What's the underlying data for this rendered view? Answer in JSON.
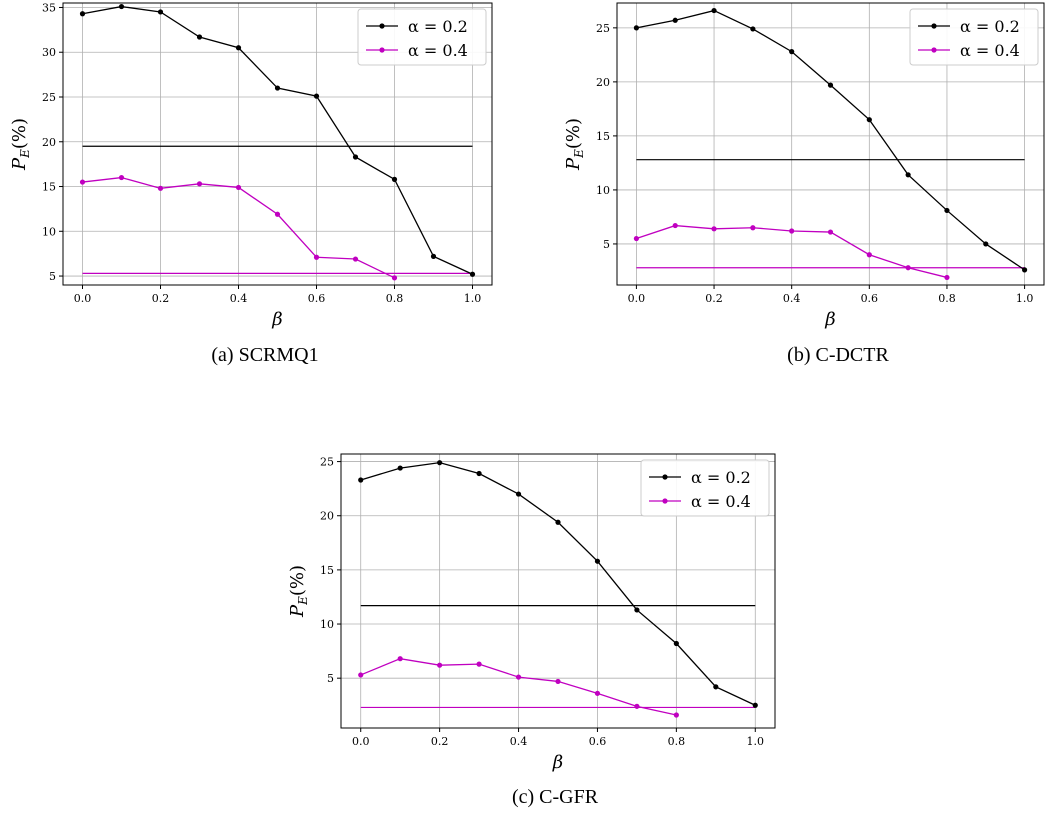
{
  "colors": {
    "series_a": "#000000",
    "series_b": "#c000c0",
    "grid": "#b0b0b0"
  },
  "chart_data": [
    {
      "type": "line",
      "caption": "(a) SCRMQ1",
      "xlabel": "β",
      "ylabel_main": "P",
      "ylabel_sub": "E",
      "ylabel_tail": "(%)",
      "xlim": [
        -0.05,
        1.05
      ],
      "ylim": [
        4.0,
        35.5
      ],
      "xticks": [
        0.0,
        0.2,
        0.4,
        0.6,
        0.8,
        1.0
      ],
      "xtick_labels": [
        "0.0",
        "0.2",
        "0.4",
        "0.6",
        "0.8",
        "1.0"
      ],
      "yticks": [
        5,
        10,
        15,
        20,
        25,
        30,
        35
      ],
      "ytick_labels": [
        "5",
        "10",
        "15",
        "20",
        "25",
        "30",
        "35"
      ],
      "grid": true,
      "legend_position": "top-right",
      "series": [
        {
          "name": "α = 0.2",
          "color": "#000000",
          "x": [
            0.0,
            0.1,
            0.2,
            0.3,
            0.4,
            0.5,
            0.6,
            0.7,
            0.8,
            0.9,
            1.0
          ],
          "values": [
            34.3,
            35.1,
            34.5,
            31.7,
            30.5,
            26.0,
            25.1,
            18.3,
            15.8,
            7.2,
            5.2
          ]
        },
        {
          "name": "α = 0.4",
          "color": "#c000c0",
          "x": [
            0.0,
            0.1,
            0.2,
            0.3,
            0.4,
            0.5,
            0.6,
            0.7,
            0.8
          ],
          "values": [
            15.5,
            16.0,
            14.8,
            15.3,
            14.9,
            11.9,
            7.1,
            6.9,
            4.8
          ]
        }
      ],
      "hlines": [
        {
          "y": 19.5,
          "color": "#000000"
        },
        {
          "y": 5.3,
          "color": "#c000c0"
        }
      ]
    },
    {
      "type": "line",
      "caption": "(b) C-DCTR",
      "xlabel": "β",
      "ylabel_main": "P",
      "ylabel_sub": "E",
      "ylabel_tail": "(%)",
      "xlim": [
        -0.05,
        1.05
      ],
      "ylim": [
        1.2,
        27.3
      ],
      "xticks": [
        0.0,
        0.2,
        0.4,
        0.6,
        0.8,
        1.0
      ],
      "xtick_labels": [
        "0.0",
        "0.2",
        "0.4",
        "0.6",
        "0.8",
        "1.0"
      ],
      "yticks": [
        5,
        10,
        15,
        20,
        25
      ],
      "ytick_labels": [
        "5",
        "10",
        "15",
        "20",
        "25"
      ],
      "grid": true,
      "legend_position": "top-right",
      "series": [
        {
          "name": "α = 0.2",
          "color": "#000000",
          "x": [
            0.0,
            0.1,
            0.2,
            0.3,
            0.4,
            0.5,
            0.6,
            0.7,
            0.8,
            0.9,
            1.0
          ],
          "values": [
            25.0,
            25.7,
            26.6,
            24.9,
            22.8,
            19.7,
            16.5,
            11.4,
            8.1,
            5.0,
            2.6
          ]
        },
        {
          "name": "α = 0.4",
          "color": "#c000c0",
          "x": [
            0.0,
            0.1,
            0.2,
            0.3,
            0.4,
            0.5,
            0.6,
            0.7,
            0.8
          ],
          "values": [
            5.5,
            6.7,
            6.4,
            6.5,
            6.2,
            6.1,
            4.0,
            2.8,
            1.9
          ]
        }
      ],
      "hlines": [
        {
          "y": 12.8,
          "color": "#000000"
        },
        {
          "y": 2.8,
          "color": "#c000c0"
        }
      ]
    },
    {
      "type": "line",
      "caption": "(c) C-GFR",
      "xlabel": "β",
      "ylabel_main": "P",
      "ylabel_sub": "E",
      "ylabel_tail": "(%)",
      "xlim": [
        -0.05,
        1.05
      ],
      "ylim": [
        0.4,
        25.7
      ],
      "xticks": [
        0.0,
        0.2,
        0.4,
        0.6,
        0.8,
        1.0
      ],
      "xtick_labels": [
        "0.0",
        "0.2",
        "0.4",
        "0.6",
        "0.8",
        "1.0"
      ],
      "yticks": [
        5,
        10,
        15,
        20,
        25
      ],
      "ytick_labels": [
        "5",
        "10",
        "15",
        "20",
        "25"
      ],
      "grid": true,
      "legend_position": "top-right",
      "series": [
        {
          "name": "α = 0.2",
          "color": "#000000",
          "x": [
            0.0,
            0.1,
            0.2,
            0.3,
            0.4,
            0.5,
            0.6,
            0.7,
            0.8,
            0.9,
            1.0
          ],
          "values": [
            23.3,
            24.4,
            24.9,
            23.9,
            22.0,
            19.4,
            15.8,
            11.3,
            8.2,
            4.2,
            2.5
          ]
        },
        {
          "name": "α = 0.4",
          "color": "#c000c0",
          "x": [
            0.0,
            0.1,
            0.2,
            0.3,
            0.4,
            0.5,
            0.6,
            0.7,
            0.8
          ],
          "values": [
            5.3,
            6.8,
            6.2,
            6.3,
            5.1,
            4.7,
            3.6,
            2.4,
            1.6
          ]
        }
      ],
      "hlines": [
        {
          "y": 11.7,
          "color": "#000000"
        },
        {
          "y": 2.3,
          "color": "#c000c0"
        }
      ]
    }
  ]
}
